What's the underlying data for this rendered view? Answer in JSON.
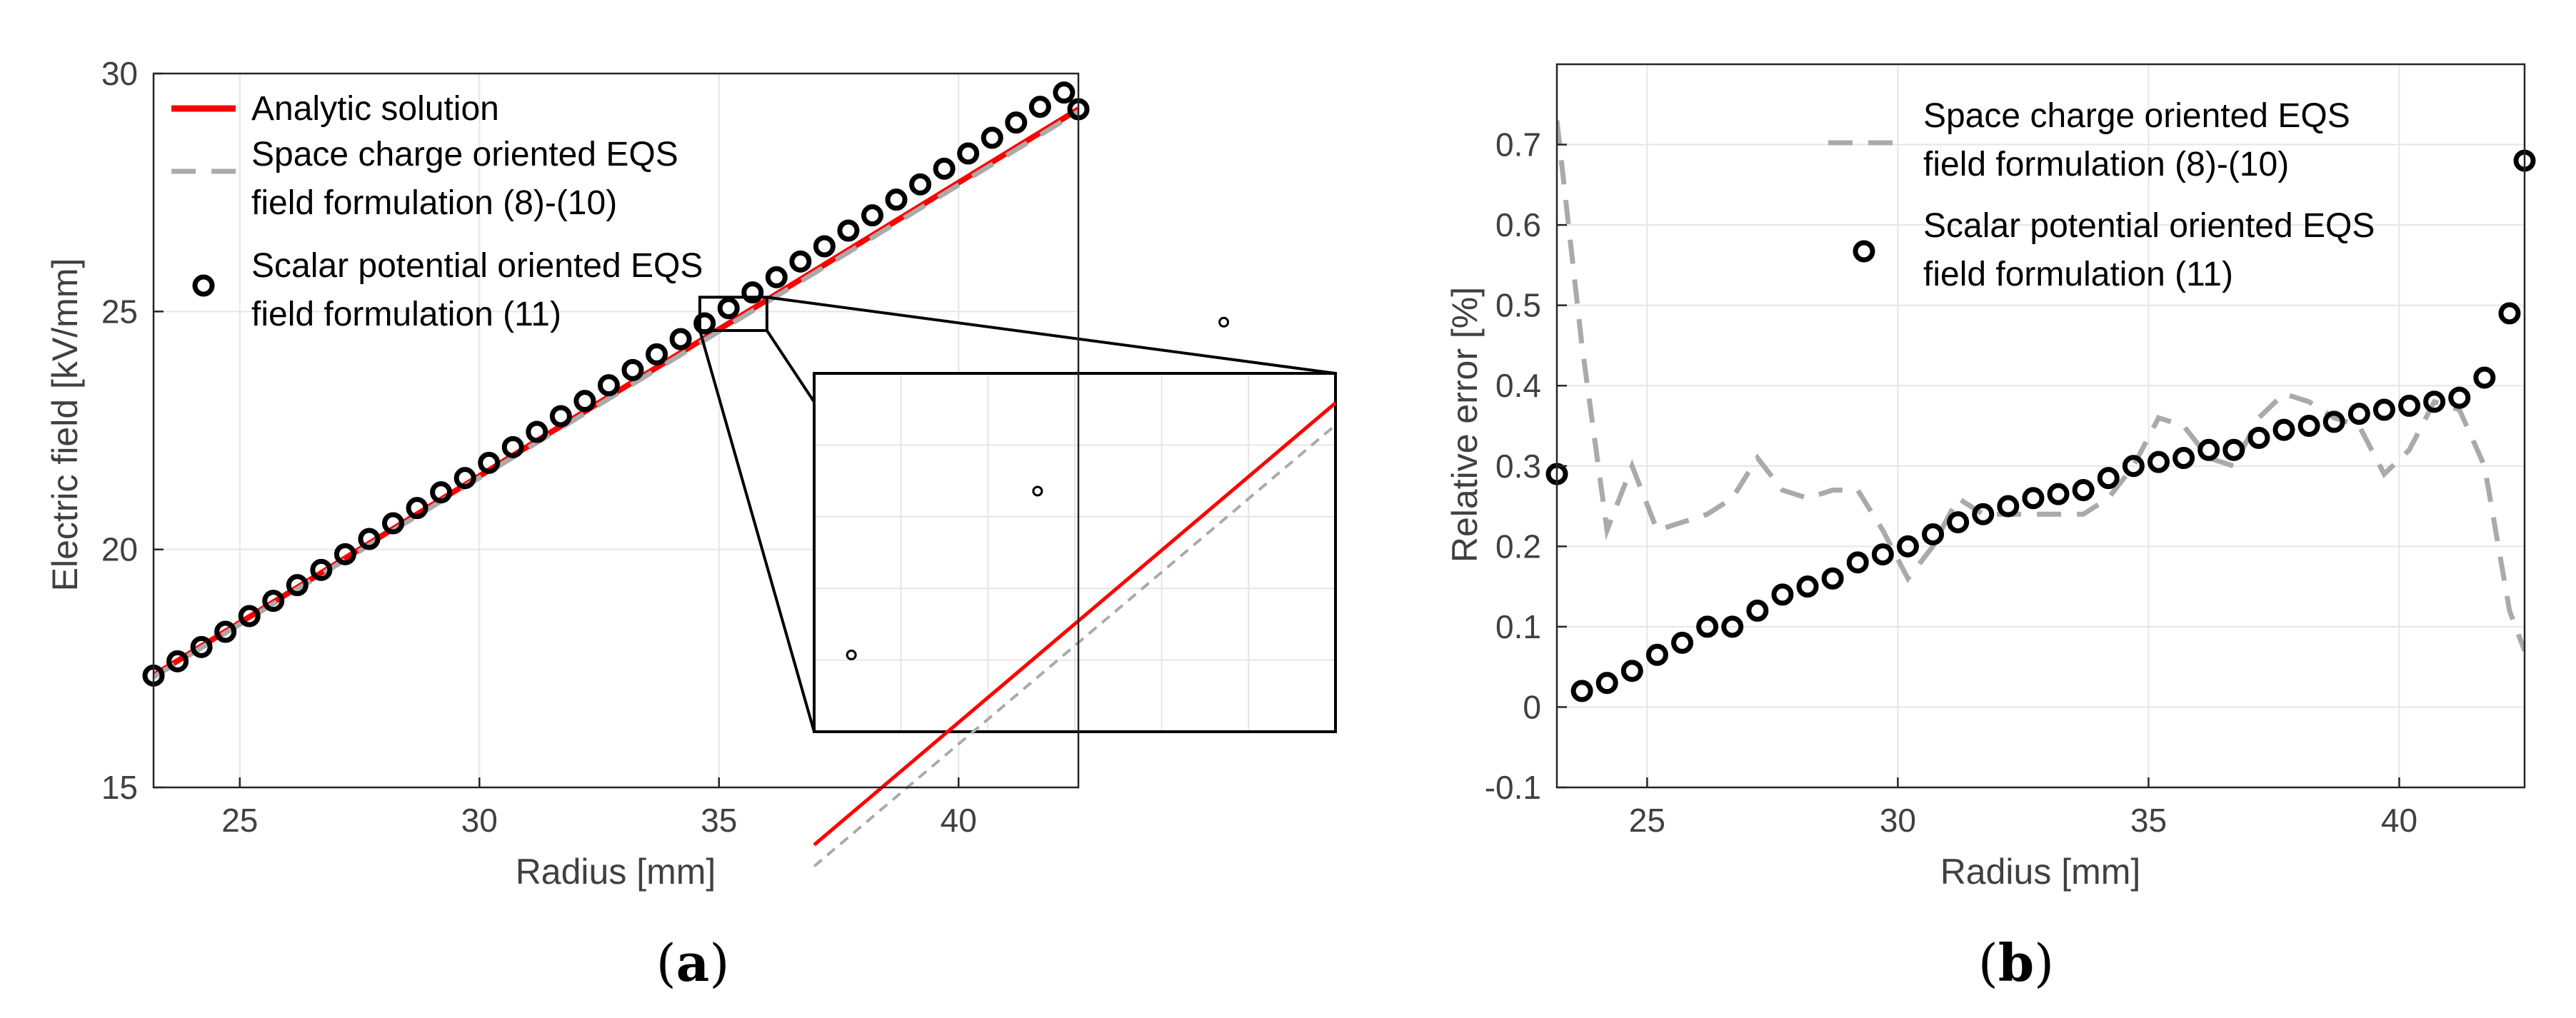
{
  "panel_labels": {
    "a": "(a)",
    "b": "(b)"
  },
  "colors": {
    "analytic": "#ff0000",
    "space_charge": "#aaaaaa",
    "scalar": "#000000",
    "grid": "#e6e6e6",
    "axis": "#262626"
  },
  "chart_data": [
    {
      "type": "line",
      "xlabel": "Radius [mm]",
      "ylabel": "Electric field [kV/mm]",
      "xlim": [
        23.2,
        42.5
      ],
      "ylim": [
        15,
        30
      ],
      "xticks": [
        25,
        30,
        35,
        40
      ],
      "yticks": [
        15,
        20,
        25,
        30
      ],
      "grid": true,
      "legend_position": "top-left",
      "series": [
        {
          "name": "Analytic solution",
          "style": "solid",
          "x": [
            23.2,
            42.5
          ],
          "y": [
            17.35,
            29.25
          ]
        },
        {
          "name": "Space charge oriented EQS field formulation (8)-(10)",
          "style": "dashed",
          "x": [
            23.2,
            42.5
          ],
          "y": [
            17.32,
            29.2
          ]
        },
        {
          "name": "Scalar potential oriented EQS field formulation (11)",
          "style": "markers",
          "x": [
            23.2,
            23.7,
            24.2,
            24.7,
            25.2,
            25.7,
            26.2,
            26.7,
            27.2,
            27.7,
            28.2,
            28.7,
            29.2,
            29.7,
            30.2,
            30.7,
            31.2,
            31.7,
            32.2,
            32.7,
            33.2,
            33.7,
            34.2,
            34.7,
            35.2,
            35.7,
            36.2,
            36.7,
            37.2,
            37.7,
            38.2,
            38.7,
            39.2,
            39.7,
            40.2,
            40.7,
            41.2,
            41.7,
            42.2,
            42.5
          ],
          "y": [
            17.35,
            17.65,
            17.95,
            18.27,
            18.6,
            18.92,
            19.25,
            19.57,
            19.9,
            20.22,
            20.55,
            20.87,
            21.2,
            21.5,
            21.82,
            22.15,
            22.47,
            22.8,
            23.12,
            23.45,
            23.77,
            24.1,
            24.42,
            24.75,
            25.07,
            25.4,
            25.72,
            26.05,
            26.37,
            26.7,
            27.02,
            27.35,
            27.67,
            28.0,
            28.32,
            28.65,
            28.97,
            29.3,
            29.6,
            29.25
          ]
        }
      ],
      "inset": {
        "x_range": [
          34.6,
          36.0
        ],
        "y_range": [
          24.6,
          25.3
        ]
      }
    },
    {
      "type": "line",
      "xlabel": "Radius [mm]",
      "ylabel": "Relative error [%]",
      "xlim": [
        23.2,
        42.5
      ],
      "ylim": [
        -0.1,
        0.8
      ],
      "xticks": [
        25,
        30,
        35,
        40
      ],
      "yticks": [
        -0.1,
        0,
        0.1,
        0.2,
        0.3,
        0.4,
        0.5,
        0.6,
        0.7
      ],
      "ytick_labels": [
        "-0.1",
        "0",
        "0.1",
        "0.2",
        "0.3",
        "0.4",
        "0.5",
        "0.6",
        "0.7"
      ],
      "grid": true,
      "legend_position": "top-right",
      "series": [
        {
          "name": "Space charge oriented EQS field formulation (8)-(10)",
          "style": "dashed",
          "x": [
            23.2,
            23.7,
            24.2,
            24.7,
            25.2,
            25.7,
            26.2,
            26.7,
            27.2,
            27.7,
            28.2,
            28.7,
            29.2,
            29.7,
            30.2,
            30.7,
            31.2,
            31.7,
            32.2,
            32.7,
            33.2,
            33.7,
            34.2,
            34.7,
            35.2,
            35.7,
            36.2,
            36.7,
            37.2,
            37.7,
            38.2,
            38.7,
            39.2,
            39.7,
            40.2,
            40.7,
            41.2,
            41.7,
            42.2,
            42.5
          ],
          "y": [
            0.73,
            0.45,
            0.22,
            0.3,
            0.22,
            0.23,
            0.24,
            0.26,
            0.31,
            0.27,
            0.26,
            0.27,
            0.27,
            0.22,
            0.16,
            0.2,
            0.26,
            0.24,
            0.24,
            0.24,
            0.24,
            0.24,
            0.26,
            0.3,
            0.36,
            0.35,
            0.31,
            0.3,
            0.36,
            0.39,
            0.38,
            0.36,
            0.35,
            0.29,
            0.32,
            0.38,
            0.37,
            0.3,
            0.12,
            0.07
          ]
        },
        {
          "name": "Scalar potential oriented EQS field formulation (11)",
          "style": "markers",
          "x": [
            23.2,
            23.7,
            24.2,
            24.7,
            25.2,
            25.7,
            26.2,
            26.7,
            27.2,
            27.7,
            28.2,
            28.7,
            29.2,
            29.7,
            30.2,
            30.7,
            31.2,
            31.7,
            32.2,
            32.7,
            33.2,
            33.7,
            34.2,
            34.7,
            35.2,
            35.7,
            36.2,
            36.7,
            37.2,
            37.7,
            38.2,
            38.7,
            39.2,
            39.7,
            40.2,
            40.7,
            41.2,
            41.7,
            42.2,
            42.5
          ],
          "y": [
            0.29,
            0.02,
            0.03,
            0.045,
            0.065,
            0.08,
            0.1,
            0.1,
            0.12,
            0.14,
            0.15,
            0.16,
            0.18,
            0.19,
            0.2,
            0.215,
            0.23,
            0.24,
            0.25,
            0.26,
            0.265,
            0.27,
            0.285,
            0.3,
            0.305,
            0.31,
            0.32,
            0.32,
            0.335,
            0.345,
            0.35,
            0.355,
            0.365,
            0.37,
            0.375,
            0.38,
            0.385,
            0.41,
            0.49,
            0.68
          ]
        }
      ]
    }
  ]
}
